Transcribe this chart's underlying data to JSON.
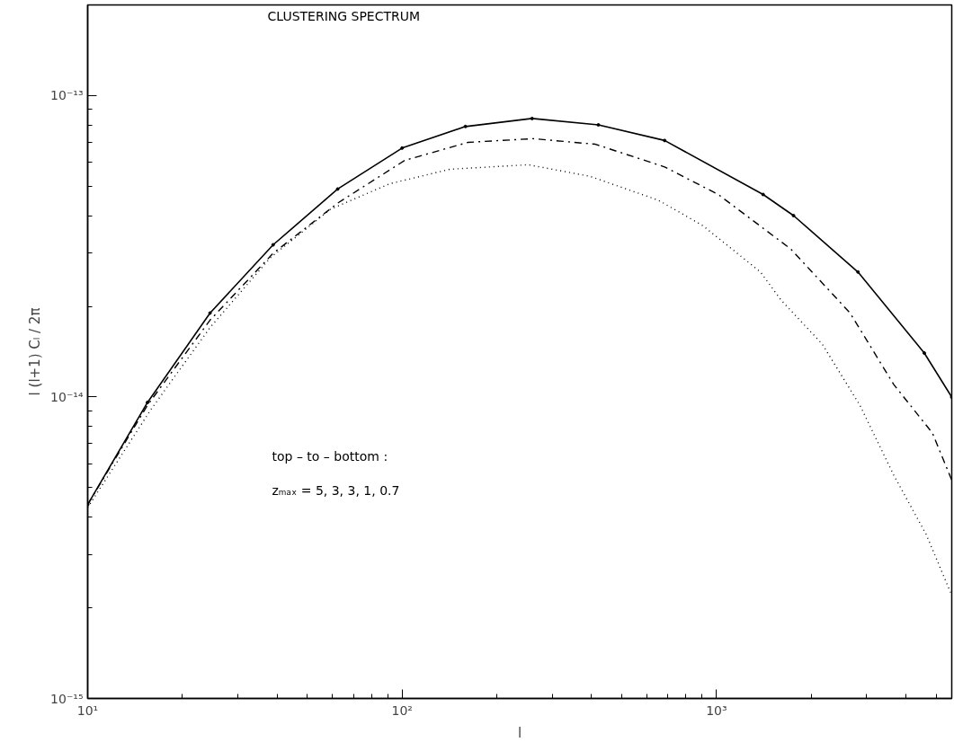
{
  "chart_data": {
    "type": "line",
    "xlabel": "l",
    "ylabel": "l (l+1) Cₗ / 2π",
    "log": "xy",
    "grid": false,
    "annotations": [
      "CLUSTERING SPECTRUM",
      "top – to – bottom :",
      "zₘₐₓ = 5, 3, 3, 1, 0.7"
    ],
    "xlim": [
      10,
      5600
    ],
    "ylim": [
      1e-15,
      2e-13
    ],
    "xticks": [
      {
        "value": 10,
        "label": "10¹"
      },
      {
        "value": 20,
        "label": null
      },
      {
        "value": 30,
        "label": null
      },
      {
        "value": 40,
        "label": null
      },
      {
        "value": 50,
        "label": null
      },
      {
        "value": 60,
        "label": null
      },
      {
        "value": 70,
        "label": null
      },
      {
        "value": 80,
        "label": null
      },
      {
        "value": 90,
        "label": null
      },
      {
        "value": 100,
        "label": "10²"
      },
      {
        "value": 200,
        "label": null
      },
      {
        "value": 300,
        "label": null
      },
      {
        "value": 400,
        "label": null
      },
      {
        "value": 500,
        "label": null
      },
      {
        "value": 600,
        "label": null
      },
      {
        "value": 700,
        "label": null
      },
      {
        "value": 800,
        "label": null
      },
      {
        "value": 900,
        "label": null
      },
      {
        "value": 1000,
        "label": "10³"
      },
      {
        "value": 2000,
        "label": null
      },
      {
        "value": 3000,
        "label": null
      },
      {
        "value": 4000,
        "label": null
      },
      {
        "value": 5000,
        "label": null
      }
    ],
    "yticks": [
      {
        "value": 1e-15,
        "label": "10⁻¹⁵"
      },
      {
        "value": 2e-15,
        "label": null
      },
      {
        "value": 3e-15,
        "label": null
      },
      {
        "value": 4e-15,
        "label": null
      },
      {
        "value": 5e-15,
        "label": null
      },
      {
        "value": 6e-15,
        "label": null
      },
      {
        "value": 7e-15,
        "label": null
      },
      {
        "value": 8e-15,
        "label": null
      },
      {
        "value": 9e-15,
        "label": null
      },
      {
        "value": 1e-14,
        "label": "10⁻¹⁴"
      },
      {
        "value": 2e-14,
        "label": null
      },
      {
        "value": 3e-14,
        "label": null
      },
      {
        "value": 4e-14,
        "label": null
      },
      {
        "value": 5e-14,
        "label": null
      },
      {
        "value": 6e-14,
        "label": null
      },
      {
        "value": 7e-14,
        "label": null
      },
      {
        "value": 8e-14,
        "label": null
      },
      {
        "value": 9e-14,
        "label": null
      },
      {
        "value": 1e-13,
        "label": "10⁻¹³"
      },
      {
        "value": 2e-13,
        "label": null
      }
    ],
    "series": [
      {
        "color": "#000000",
        "line_style": "solid",
        "marker": "circle",
        "x": [
          10,
          15.5,
          24.5,
          38.9,
          62.4,
          100,
          159,
          259,
          421,
          684,
          1407,
          1758,
          2818,
          4580,
          5600
        ],
        "values": [
          4.4e-15,
          9.6e-15,
          1.9e-14,
          3.2e-14,
          4.9e-14,
          6.7e-14,
          7.9e-14,
          8.4e-14,
          8e-14,
          7.1e-14,
          4.7e-14,
          4e-14,
          2.6e-14,
          1.4e-14,
          1e-14
        ]
      },
      {
        "color": "#000000",
        "line_style": "dashdot",
        "marker": "none",
        "x": [
          10,
          15.5,
          24.5,
          38.9,
          62.4,
          102,
          162,
          261,
          412,
          684,
          1013,
          1722,
          2660,
          3664,
          4860,
          5600
        ],
        "values": [
          4.4e-15,
          9.4e-15,
          1.8e-14,
          3e-14,
          4.4e-14,
          6.1e-14,
          7e-14,
          7.2e-14,
          6.9e-14,
          5.8e-14,
          4.7e-14,
          3.1e-14,
          1.9e-14,
          1.1e-14,
          7.6e-15,
          5.3e-15
        ]
      },
      {
        "color": "#000000",
        "line_style": "dotted",
        "marker": "none",
        "x": [
          10,
          15.9,
          24.5,
          38.1,
          59.2,
          91.2,
          142,
          252,
          396,
          653,
          906,
          1380,
          1603,
          2168,
          2857,
          3664,
          4645,
          5600
        ],
        "values": [
          4.3e-15,
          9.1e-15,
          1.7e-14,
          2.9e-14,
          4.2e-14,
          5.1e-14,
          5.7e-14,
          5.9e-14,
          5.4e-14,
          4.5e-14,
          3.7e-14,
          2.6e-14,
          2.1e-14,
          1.5e-14,
          9.4e-15,
          5.5e-15,
          3.5e-15,
          2.2e-15
        ]
      }
    ]
  }
}
